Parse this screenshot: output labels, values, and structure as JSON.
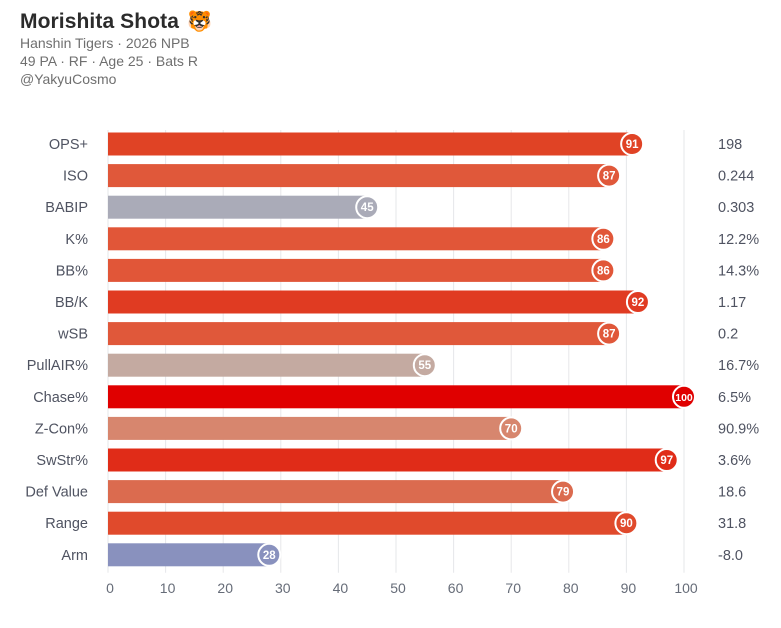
{
  "header": {
    "title": "Morishita Shota",
    "emoji": "🐯",
    "line1": "Hanshin Tigers · 2026 NPB",
    "line2": "49 PA · RF · Age 25 · Bats R",
    "line3": "@YakyuCosmo"
  },
  "chart_data": {
    "type": "bar",
    "orientation": "horizontal",
    "categories": [
      "OPS+",
      "ISO",
      "BABIP",
      "K%",
      "BB%",
      "BB/K",
      "wSB",
      "PullAIR%",
      "Chase%",
      "Z-Con%",
      "SwStr%",
      "Def Value",
      "Range",
      "Arm"
    ],
    "values": [
      91,
      87,
      45,
      86,
      86,
      92,
      87,
      55,
      100,
      70,
      97,
      79,
      90,
      28
    ],
    "raw_values": [
      "198",
      "0.244",
      "0.303",
      "12.2%",
      "14.3%",
      "1.17",
      "0.2",
      "16.7%",
      "6.5%",
      "90.9%",
      "3.6%",
      "18.6",
      "31.8",
      "-8.0"
    ],
    "colors": [
      "#e04325",
      "#e0583a",
      "#aaabb8",
      "#e15638",
      "#e15638",
      "#e03b22",
      "#e0583a",
      "#c4aaa1",
      "#e00000",
      "#d7866e",
      "#e02c18",
      "#db6b4f",
      "#e04a2c",
      "#8991be"
    ],
    "xticks": [
      0,
      10,
      20,
      30,
      40,
      50,
      60,
      70,
      80,
      90,
      100
    ],
    "xlim": [
      0,
      100
    ],
    "grid": true,
    "title": "",
    "xlabel": "",
    "ylabel": ""
  }
}
